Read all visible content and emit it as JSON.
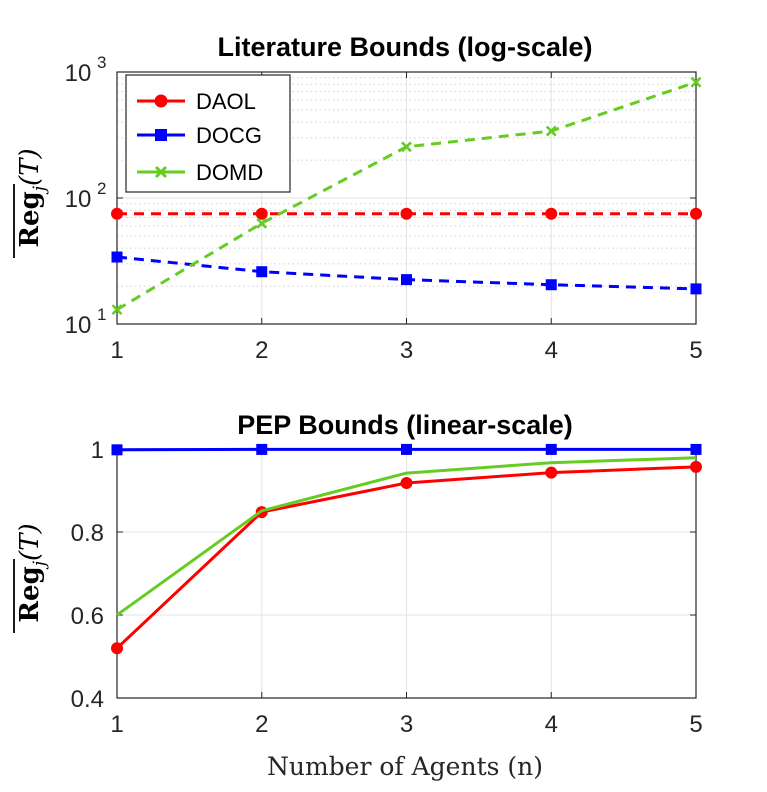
{
  "chart_data": [
    {
      "type": "line",
      "title": "Literature Bounds (log-scale)",
      "yscale": "log",
      "x": [
        1,
        2,
        3,
        4,
        5
      ],
      "xlim": [
        1,
        5
      ],
      "ylim": [
        10,
        1000
      ],
      "xticks": [
        "1",
        "2",
        "3",
        "4",
        "5"
      ],
      "yticks": [
        {
          "base": "10",
          "exp": "1",
          "value": 10
        },
        {
          "base": "10",
          "exp": "2",
          "value": 100
        },
        {
          "base": "10",
          "exp": "3",
          "value": 1000
        }
      ],
      "ylabel": {
        "main": "Reg",
        "sub": "j",
        "arg": "(T)"
      },
      "xlabel": "",
      "grid": true,
      "legend_position": "top-left",
      "series": [
        {
          "name": "DAOL",
          "color": "#ff0000",
          "marker": "circle",
          "line": "dashed",
          "values": [
            75,
            75,
            75,
            75,
            75
          ]
        },
        {
          "name": "DOCG",
          "color": "#0000ff",
          "marker": "square",
          "line": "dashed",
          "values": [
            34,
            26,
            22.5,
            20.5,
            19
          ]
        },
        {
          "name": "DOMD",
          "color": "#66cc22",
          "marker": "x",
          "line": "dashed",
          "values": [
            13,
            63,
            255,
            340,
            830
          ]
        }
      ]
    },
    {
      "type": "line",
      "title": "PEP Bounds (linear-scale)",
      "yscale": "linear",
      "x": [
        1,
        2,
        3,
        4,
        5
      ],
      "xlim": [
        1,
        5
      ],
      "ylim": [
        0.4,
        1.0
      ],
      "xticks": [
        "1",
        "2",
        "3",
        "4",
        "5"
      ],
      "yticks": [
        {
          "label": "0.4",
          "value": 0.4
        },
        {
          "label": "0.6",
          "value": 0.6
        },
        {
          "label": "0.8",
          "value": 0.8
        },
        {
          "label": "1",
          "value": 1.0
        }
      ],
      "ylabel": {
        "main": "Reg",
        "sub": "j",
        "arg": "(T)"
      },
      "xlabel": "Number of Agents (n)",
      "grid": true,
      "series": [
        {
          "name": "DAOL",
          "color": "#ff0000",
          "marker": "circle",
          "line": "solid",
          "values": [
            0.52,
            0.848,
            0.918,
            0.943,
            0.957
          ]
        },
        {
          "name": "DOCG",
          "color": "#0000ff",
          "marker": "square",
          "line": "solid",
          "values": [
            0.998,
            0.999,
            0.999,
            0.999,
            0.999
          ]
        },
        {
          "name": "DOMD",
          "color": "#66cc22",
          "marker": "none",
          "line": "solid",
          "values": [
            0.6,
            0.851,
            0.942,
            0.967,
            0.979
          ]
        }
      ]
    }
  ]
}
